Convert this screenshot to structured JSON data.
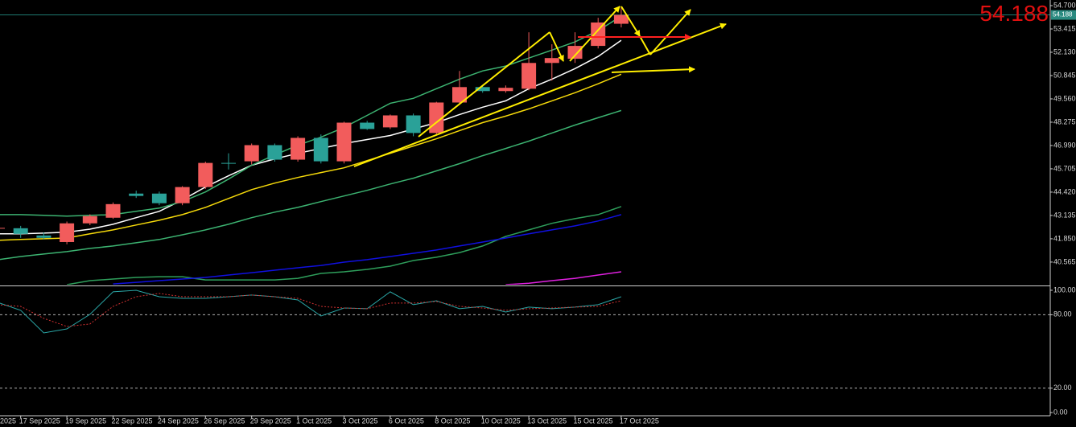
{
  "chart_data": [
    {
      "type": "candlestick",
      "categories": [
        "2025",
        "17 Sep 2025",
        null,
        "19 Sep 2025",
        null,
        "22 Sep 2025",
        null,
        "24 Sep 2025",
        null,
        "26 Sep 2025",
        null,
        "29 Sep 2025",
        null,
        "1 Oct 2025",
        null,
        "3 Oct 2025",
        null,
        "6 Oct 2025",
        null,
        "8 Oct 2025",
        null,
        "10 Oct 2025",
        null,
        "13 Oct 2025",
        null,
        "15 Oct 2025",
        null,
        "17 Oct 2025"
      ],
      "open": [
        42.43,
        42.43,
        42.03,
        41.67,
        42.7,
        43.01,
        44.34,
        44.34,
        43.81,
        44.7,
        46.03,
        46.12,
        47.01,
        46.21,
        47.41,
        46.12,
        48.25,
        47.99,
        48.65,
        47.68,
        49.36,
        50.21,
        49.99,
        50.12,
        51.54,
        51.77,
        52.48,
        53.7
      ],
      "high": [
        42.56,
        42.56,
        42.2,
        42.8,
        43.2,
        43.85,
        44.5,
        44.45,
        44.75,
        46.1,
        46.56,
        47.1,
        47.1,
        47.5,
        47.6,
        48.3,
        48.35,
        48.7,
        48.75,
        49.4,
        51.1,
        50.3,
        50.3,
        53.23,
        52.57,
        53.23,
        54.03,
        54.6
      ],
      "low": [
        42.3,
        41.9,
        41.81,
        41.55,
        42.6,
        42.95,
        44.1,
        43.7,
        43.7,
        44.6,
        45.67,
        45.95,
        46.1,
        46.1,
        46.0,
        46.0,
        47.85,
        47.9,
        47.5,
        47.55,
        49.23,
        49.9,
        49.9,
        50.03,
        50.57,
        51.54,
        52.34,
        53.5
      ],
      "close": [
        42.45,
        42.12,
        41.9,
        42.7,
        43.1,
        43.76,
        44.21,
        43.81,
        44.7,
        46.03,
        45.99,
        47.01,
        46.21,
        47.41,
        46.12,
        48.25,
        47.9,
        48.65,
        47.68,
        49.36,
        50.21,
        49.99,
        50.17,
        51.54,
        51.81,
        52.48,
        53.77,
        54.188
      ],
      "up_color": "#f25c5c",
      "down_color": "#2aa198",
      "series": [
        {
          "color": "#ffffff",
          "values": [
            42.12,
            42.12,
            42.16,
            42.21,
            42.38,
            42.65,
            43.01,
            43.36,
            43.99,
            44.7,
            45.32,
            45.9,
            46.25,
            46.56,
            46.83,
            47.1,
            47.32,
            47.54,
            47.9,
            48.25,
            48.7,
            49.1,
            49.45,
            50.12,
            50.65,
            51.23,
            51.9,
            52.79
          ]
        },
        {
          "color": "#f5d90a",
          "values": [
            41.76,
            41.81,
            41.85,
            41.89,
            42.12,
            42.34,
            42.61,
            42.87,
            43.18,
            43.58,
            44.07,
            44.56,
            44.92,
            45.23,
            45.5,
            45.76,
            46.16,
            46.56,
            46.96,
            47.36,
            47.81,
            48.25,
            48.61,
            49.01,
            49.45,
            49.9,
            50.39,
            50.92
          ]
        },
        {
          "color": "#3cb371",
          "values": [
            43.18,
            43.18,
            43.14,
            43.1,
            43.14,
            43.18,
            43.36,
            43.54,
            43.9,
            44.43,
            45.14,
            45.9,
            46.47,
            47.01,
            47.45,
            47.99,
            48.65,
            49.32,
            49.59,
            50.12,
            50.65,
            51.1,
            51.37,
            51.81,
            52.25,
            52.7,
            53.32,
            54.12
          ]
        },
        {
          "color": "#3cb371",
          "values": [
            40.69,
            40.87,
            41.01,
            41.14,
            41.32,
            41.45,
            41.63,
            41.81,
            42.07,
            42.34,
            42.65,
            43.01,
            43.32,
            43.58,
            43.9,
            44.21,
            44.52,
            44.87,
            45.19,
            45.59,
            45.99,
            46.43,
            46.83,
            47.23,
            47.68,
            48.12,
            48.52,
            48.92
          ]
        },
        {
          "color": "#2e9e5b",
          "values": [
            null,
            null,
            null,
            39.32,
            39.54,
            39.63,
            39.72,
            39.76,
            39.76,
            39.58,
            39.58,
            39.58,
            39.58,
            39.67,
            39.94,
            40.03,
            40.16,
            40.34,
            40.65,
            40.83,
            41.09,
            41.45,
            41.98,
            42.34,
            42.7,
            42.96,
            43.18,
            43.63
          ]
        },
        {
          "color": "#1010e0",
          "values": [
            null,
            null,
            null,
            null,
            null,
            39.36,
            39.45,
            39.54,
            39.63,
            39.72,
            39.85,
            39.98,
            40.12,
            40.25,
            40.38,
            40.56,
            40.7,
            40.87,
            41.05,
            41.23,
            41.45,
            41.67,
            41.89,
            42.12,
            42.34,
            42.56,
            42.83,
            43.18
          ]
        },
        {
          "color": "#e020e0",
          "values": [
            null,
            null,
            null,
            null,
            null,
            null,
            null,
            null,
            null,
            null,
            null,
            null,
            null,
            null,
            null,
            null,
            null,
            null,
            null,
            null,
            null,
            null,
            39.32,
            39.4,
            39.54,
            39.67,
            39.85,
            40.03
          ]
        }
      ],
      "current_price": 54.188,
      "ylim": [
        39.32,
        55.01
      ],
      "yticks": [
        {
          "value": 54.7,
          "label": "54.700"
        },
        {
          "value": 53.415,
          "label": "53.415"
        },
        {
          "value": 52.13,
          "label": "52.130"
        },
        {
          "value": 50.845,
          "label": "50.845"
        },
        {
          "value": 49.56,
          "label": "49.560"
        },
        {
          "value": 48.275,
          "label": "48.275"
        },
        {
          "value": 46.99,
          "label": "46.990"
        },
        {
          "value": 45.705,
          "label": "45.705"
        },
        {
          "value": 44.42,
          "label": "44.420"
        },
        {
          "value": 43.135,
          "label": "43.135"
        },
        {
          "value": 41.85,
          "label": "41.850"
        },
        {
          "value": 40.565,
          "label": "40.565"
        }
      ]
    },
    {
      "type": "line",
      "series": [
        {
          "color": "#2aa6a6",
          "style": "solid",
          "values": [
            90.1,
            83.6,
            65.1,
            68.4,
            80.3,
            98.7,
            100.0,
            94.7,
            93.4,
            93.4,
            94.7,
            96.1,
            94.7,
            92.1,
            78.9,
            85.5,
            84.9,
            98.7,
            88.2,
            91.4,
            84.9,
            86.8,
            82.2,
            86.2,
            84.9,
            86.2,
            88.2,
            94.7
          ]
        },
        {
          "color": "#d03030",
          "style": "dotted",
          "values": [
            88.2,
            86.8,
            77.0,
            70.4,
            72.4,
            86.8,
            94.7,
            97.4,
            94.7,
            94.7,
            94.7,
            96.1,
            94.7,
            93.4,
            86.8,
            85.5,
            84.9,
            89.5,
            89.5,
            90.8,
            86.8,
            85.5,
            83.6,
            84.9,
            85.5,
            86.2,
            86.8,
            91.4
          ]
        }
      ],
      "ylim": [
        -2.6,
        102.6
      ],
      "yticks": [
        {
          "value": 100,
          "label": "100.00"
        },
        {
          "value": 80,
          "label": "80.00"
        },
        {
          "value": 20,
          "label": "20.00"
        },
        {
          "value": 0,
          "label": "0.00"
        }
      ]
    }
  ]
}
